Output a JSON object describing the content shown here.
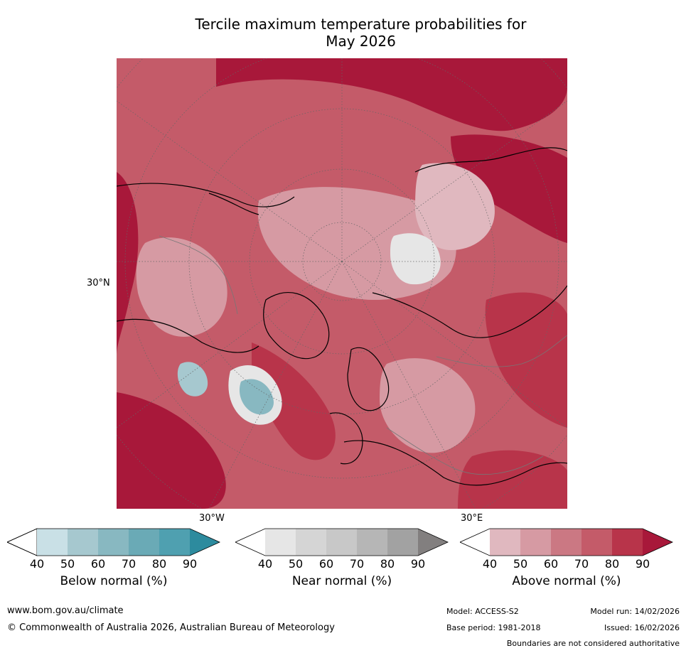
{
  "title_line1": "Tercile maximum temperature probabilities for",
  "title_line2": "May 2026",
  "map": {
    "lat_label": "30°N",
    "lon_label_left": "30°W",
    "lon_label_right": "30°E",
    "colors": {
      "above": [
        "#e0b8bf",
        "#d69aa3",
        "#cb7883",
        "#c45b69",
        "#b8344a",
        "#a8183a"
      ],
      "below": [
        "#c9e0e6",
        "#a6c8cf",
        "#88b8c1",
        "#6aaab6",
        "#4fa0b0",
        "#2d8b9e"
      ],
      "near": [
        "#e6e6e6",
        "#d5d5d5",
        "#c8c8c8",
        "#b6b6b6",
        "#a2a2a2",
        "#827f7f"
      ]
    }
  },
  "colorbars": [
    {
      "name": "below",
      "caption": "Below normal (%)",
      "ticks": [
        "40",
        "50",
        "60",
        "70",
        "80",
        "90"
      ]
    },
    {
      "name": "near",
      "caption": "Near normal (%)",
      "ticks": [
        "40",
        "50",
        "60",
        "70",
        "80",
        "90"
      ]
    },
    {
      "name": "above",
      "caption": "Above normal (%)",
      "ticks": [
        "40",
        "50",
        "60",
        "70",
        "80",
        "90"
      ]
    }
  ],
  "footer": {
    "website": "www.bom.gov.au/climate",
    "copyright": "© Commonwealth of Australia 2026, Australian Bureau of Meteorology",
    "model": "Model: ACCESS-S2",
    "base_period": "Base period: 1981-2018",
    "model_run": "Model run: 14/02/2026",
    "issued": "Issued: 16/02/2026",
    "disclaimer": "Boundaries are not considered authoritative"
  }
}
